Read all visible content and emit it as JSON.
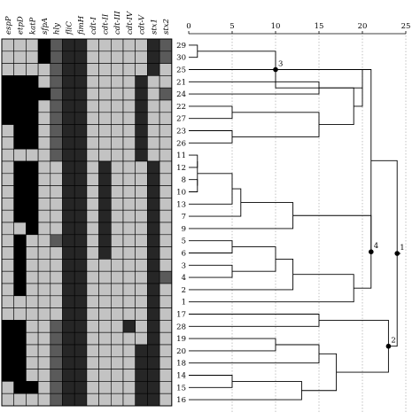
{
  "heatmap": {
    "genes": [
      "espP",
      "etpD",
      "katP",
      "sfpA",
      "hly",
      "fliC",
      "fimH",
      "cdt-I",
      "cdt-II",
      "cdt-III",
      "cdt-IV",
      "cdt-V",
      "stx1",
      "stx2"
    ],
    "state_colors": {
      "0": "#c3c3c3",
      "1": "#000000",
      "2": "#5a5a5a",
      "3": "#262626"
    },
    "rows": [
      [
        0,
        0,
        0,
        1,
        2,
        3,
        3,
        0,
        0,
        0,
        0,
        0,
        3,
        2
      ],
      [
        0,
        0,
        0,
        1,
        2,
        3,
        3,
        0,
        0,
        0,
        0,
        0,
        3,
        2
      ],
      [
        0,
        0,
        0,
        0,
        2,
        3,
        3,
        0,
        0,
        0,
        0,
        0,
        3,
        0
      ],
      [
        1,
        1,
        1,
        0,
        2,
        3,
        3,
        0,
        0,
        0,
        0,
        3,
        0,
        0
      ],
      [
        1,
        1,
        1,
        1,
        2,
        3,
        3,
        0,
        0,
        0,
        0,
        3,
        0,
        2
      ],
      [
        1,
        1,
        1,
        0,
        2,
        3,
        3,
        0,
        0,
        0,
        0,
        3,
        0,
        0
      ],
      [
        1,
        1,
        1,
        0,
        2,
        3,
        3,
        0,
        0,
        0,
        0,
        3,
        0,
        0
      ],
      [
        0,
        1,
        1,
        0,
        2,
        3,
        3,
        0,
        0,
        0,
        0,
        3,
        0,
        0
      ],
      [
        0,
        1,
        1,
        0,
        2,
        3,
        3,
        0,
        0,
        0,
        0,
        3,
        0,
        0
      ],
      [
        0,
        0,
        0,
        0,
        2,
        3,
        3,
        0,
        0,
        0,
        0,
        3,
        0,
        0
      ],
      [
        0,
        1,
        1,
        0,
        0,
        3,
        3,
        0,
        3,
        0,
        0,
        0,
        3,
        0
      ],
      [
        0,
        1,
        1,
        0,
        0,
        3,
        3,
        0,
        3,
        0,
        0,
        0,
        3,
        0
      ],
      [
        0,
        1,
        1,
        0,
        0,
        3,
        3,
        0,
        3,
        0,
        0,
        0,
        3,
        0
      ],
      [
        0,
        1,
        1,
        0,
        0,
        3,
        3,
        0,
        3,
        0,
        0,
        0,
        3,
        0
      ],
      [
        0,
        1,
        1,
        0,
        0,
        3,
        3,
        0,
        3,
        0,
        0,
        0,
        3,
        0
      ],
      [
        0,
        0,
        1,
        0,
        0,
        3,
        3,
        0,
        3,
        0,
        0,
        0,
        3,
        0
      ],
      [
        0,
        1,
        0,
        0,
        2,
        3,
        3,
        0,
        3,
        0,
        0,
        0,
        3,
        0
      ],
      [
        0,
        1,
        0,
        0,
        0,
        3,
        3,
        0,
        3,
        0,
        0,
        0,
        3,
        0
      ],
      [
        0,
        1,
        0,
        0,
        0,
        3,
        3,
        0,
        0,
        0,
        0,
        0,
        3,
        0
      ],
      [
        0,
        1,
        0,
        0,
        0,
        3,
        3,
        0,
        0,
        0,
        0,
        0,
        3,
        2
      ],
      [
        0,
        1,
        0,
        0,
        0,
        3,
        3,
        0,
        0,
        0,
        0,
        0,
        3,
        0
      ],
      [
        0,
        0,
        0,
        0,
        0,
        3,
        3,
        0,
        0,
        0,
        0,
        0,
        3,
        0
      ],
      [
        0,
        0,
        0,
        0,
        0,
        3,
        3,
        0,
        0,
        0,
        0,
        0,
        3,
        0
      ],
      [
        1,
        1,
        0,
        0,
        2,
        3,
        3,
        0,
        0,
        0,
        3,
        0,
        3,
        0
      ],
      [
        1,
        1,
        0,
        0,
        2,
        3,
        3,
        0,
        0,
        0,
        0,
        0,
        3,
        0
      ],
      [
        1,
        1,
        0,
        0,
        2,
        3,
        3,
        0,
        0,
        0,
        0,
        3,
        3,
        0
      ],
      [
        1,
        1,
        0,
        0,
        2,
        3,
        3,
        0,
        0,
        0,
        0,
        3,
        3,
        0
      ],
      [
        1,
        1,
        0,
        0,
        2,
        3,
        3,
        0,
        0,
        0,
        0,
        3,
        3,
        0
      ],
      [
        0,
        1,
        1,
        0,
        2,
        3,
        3,
        0,
        0,
        0,
        0,
        3,
        3,
        0
      ],
      [
        0,
        0,
        0,
        0,
        2,
        3,
        3,
        0,
        0,
        0,
        0,
        3,
        3,
        0
      ]
    ]
  },
  "dendrogram": {
    "axis_ticks": [
      "0",
      "5",
      "10",
      "15",
      "20",
      "25"
    ],
    "axis_values": [
      0,
      5,
      10,
      15,
      20,
      25
    ],
    "axis_max": 25,
    "leaves": [
      "29",
      "30",
      "25",
      "21",
      "24",
      "22",
      "27",
      "23",
      "26",
      "11",
      "12",
      "8",
      "10",
      "13",
      "7",
      "9",
      "5",
      "6",
      "3",
      "4",
      "2",
      "1",
      "17",
      "28",
      "19",
      "20",
      "18",
      "14",
      "15",
      "16"
    ],
    "merges": [
      {
        "a": 0,
        "b": 1,
        "h": 1
      },
      {
        "a": 3,
        "b": 4,
        "h": 15
      },
      {
        "a": 5,
        "b": 6,
        "h": 5
      },
      {
        "a": 7,
        "b": 8,
        "h": 5
      },
      {
        "a": "n2",
        "b": "n3",
        "h": 15
      },
      {
        "a": "n1",
        "b": "n4",
        "h": 19
      },
      {
        "a": 2,
        "b": "n5",
        "h": 20
      },
      {
        "a": "n0",
        "b": "n6",
        "h": 10
      },
      {
        "a": 9,
        "b": 10,
        "h": 1
      },
      {
        "a": 11,
        "b": 12,
        "h": 1
      },
      {
        "a": "n8",
        "b": "n9",
        "h": 1
      },
      {
        "a": "n10",
        "b": 13,
        "h": 5
      },
      {
        "a": "n11",
        "b": 14,
        "h": 6
      },
      {
        "a": "n12",
        "b": 15,
        "h": 12
      },
      {
        "a": 16,
        "b": 17,
        "h": 5
      },
      {
        "a": 18,
        "b": 19,
        "h": 5
      },
      {
        "a": "n14",
        "b": "n15",
        "h": 10
      },
      {
        "a": "n16",
        "b": 20,
        "h": 12
      },
      {
        "a": "n17",
        "b": 21,
        "h": 19
      },
      {
        "a": "n13",
        "b": "n18",
        "h": 21
      },
      {
        "a": 22,
        "b": 23,
        "h": 15
      },
      {
        "a": 24,
        "b": 25,
        "h": 10
      },
      {
        "a": "n21",
        "b": 26,
        "h": 15
      },
      {
        "a": 27,
        "b": 28,
        "h": 5
      },
      {
        "a": "n23",
        "b": 29,
        "h": 13
      },
      {
        "a": "n22",
        "b": "n24",
        "h": 17
      },
      {
        "a": "n20",
        "b": "n25",
        "h": 23
      },
      {
        "a": "n7",
        "b": "n19",
        "h": 21
      },
      {
        "a": "n27",
        "b": "n26",
        "h": 24
      }
    ],
    "node_labels": [
      {
        "node": "n7",
        "label": "3"
      },
      {
        "node": "n19",
        "label": "4"
      },
      {
        "node": "n26",
        "label": "2"
      },
      {
        "node": "n28",
        "label": "1"
      }
    ]
  }
}
